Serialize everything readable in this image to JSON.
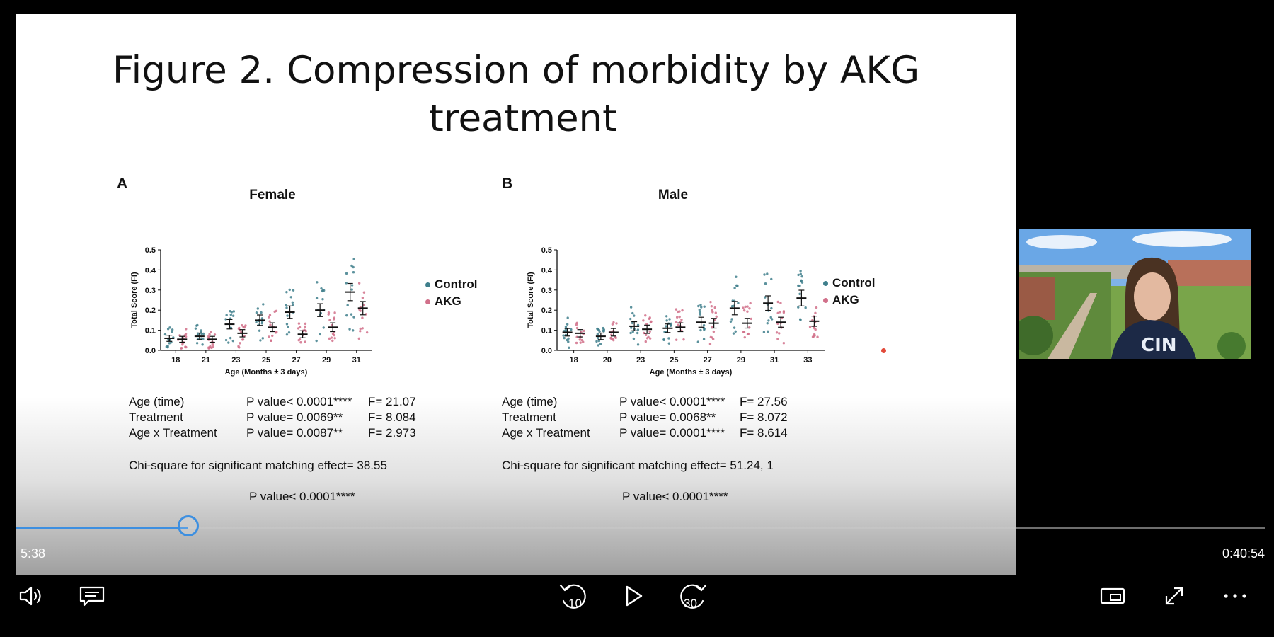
{
  "slide": {
    "title_line1": "Figure 2. Compression of morbidity by AKG",
    "title_line2": "treatment",
    "panels": [
      {
        "letter": "A",
        "title": "Female",
        "ylabel": "Total Score (FI)",
        "xlabel": "Age (Months ± 3 days)",
        "legend": [
          "Control",
          "AKG"
        ],
        "stats": [
          [
            "Age (time)",
            "P value< 0.0001****",
            "F= 21.07"
          ],
          [
            "Treatment",
            "P value= 0.0069**",
            "F= 8.084"
          ],
          [
            "Age x Treatment",
            "P value= 0.0087**",
            "F= 2.973"
          ]
        ],
        "chi_square": "Chi-square for significant matching effect= 38.55",
        "chi_p": "P value< 0.0001****"
      },
      {
        "letter": "B",
        "title": "Male",
        "ylabel": "Total Score (FI)",
        "xlabel": "Age (Months ± 3 days)",
        "legend": [
          "Control",
          "AKG"
        ],
        "stats": [
          [
            "Age (time)",
            "P value< 0.0001****",
            "F= 27.56"
          ],
          [
            "Treatment",
            "P value= 0.0068**",
            "F= 8.072"
          ],
          [
            "Age x Treatment",
            "P value= 0.0001****",
            "F= 8.614"
          ]
        ],
        "chi_square": "Chi-square for significant matching effect= 51.24, 1",
        "chi_p": "P value< 0.0001****"
      }
    ]
  },
  "chart_data": [
    {
      "type": "scatter",
      "title": "Female",
      "xlabel": "Age (Months ± 3 days)",
      "ylabel": "Total Score (FI)",
      "ylim": [
        0,
        0.5
      ],
      "yticks": [
        "0.0",
        "0.1",
        "0.2",
        "0.3",
        "0.4",
        "0.5"
      ],
      "categories": [
        "18",
        "21",
        "23",
        "25",
        "27",
        "29",
        "31"
      ],
      "series": [
        {
          "name": "Control",
          "color": "#3f7f8c",
          "means": [
            0.06,
            0.07,
            0.13,
            0.15,
            0.19,
            0.2,
            0.29
          ]
        },
        {
          "name": "AKG",
          "color": "#d1708a",
          "means": [
            0.055,
            0.055,
            0.085,
            0.115,
            0.08,
            0.115,
            0.21
          ]
        }
      ]
    },
    {
      "type": "scatter",
      "title": "Male",
      "xlabel": "Age (Months ± 3 days)",
      "ylabel": "Total Score (FI)",
      "ylim": [
        0,
        0.5
      ],
      "yticks": [
        "0.0",
        "0.1",
        "0.2",
        "0.3",
        "0.4",
        "0.5"
      ],
      "categories": [
        "18",
        "20",
        "23",
        "25",
        "27",
        "29",
        "31",
        "33"
      ],
      "series": [
        {
          "name": "Control",
          "color": "#3f7f8c",
          "means": [
            0.09,
            0.07,
            0.12,
            0.11,
            0.14,
            0.21,
            0.235,
            0.26
          ]
        },
        {
          "name": "AKG",
          "color": "#d1708a",
          "means": [
            0.085,
            0.09,
            0.105,
            0.115,
            0.135,
            0.135,
            0.14,
            0.145
          ]
        }
      ]
    }
  ],
  "player": {
    "current_time": "5:38",
    "total_time": "0:40:54",
    "progress": 0.138,
    "accent": "#3d8fe0",
    "rewind_label": "10",
    "forward_label": "30",
    "icons": [
      "volume-icon",
      "captions-icon",
      "rewind-10-icon",
      "play-icon",
      "forward-30-icon",
      "picture-in-picture-icon",
      "fullscreen-icon",
      "more-icon"
    ]
  }
}
